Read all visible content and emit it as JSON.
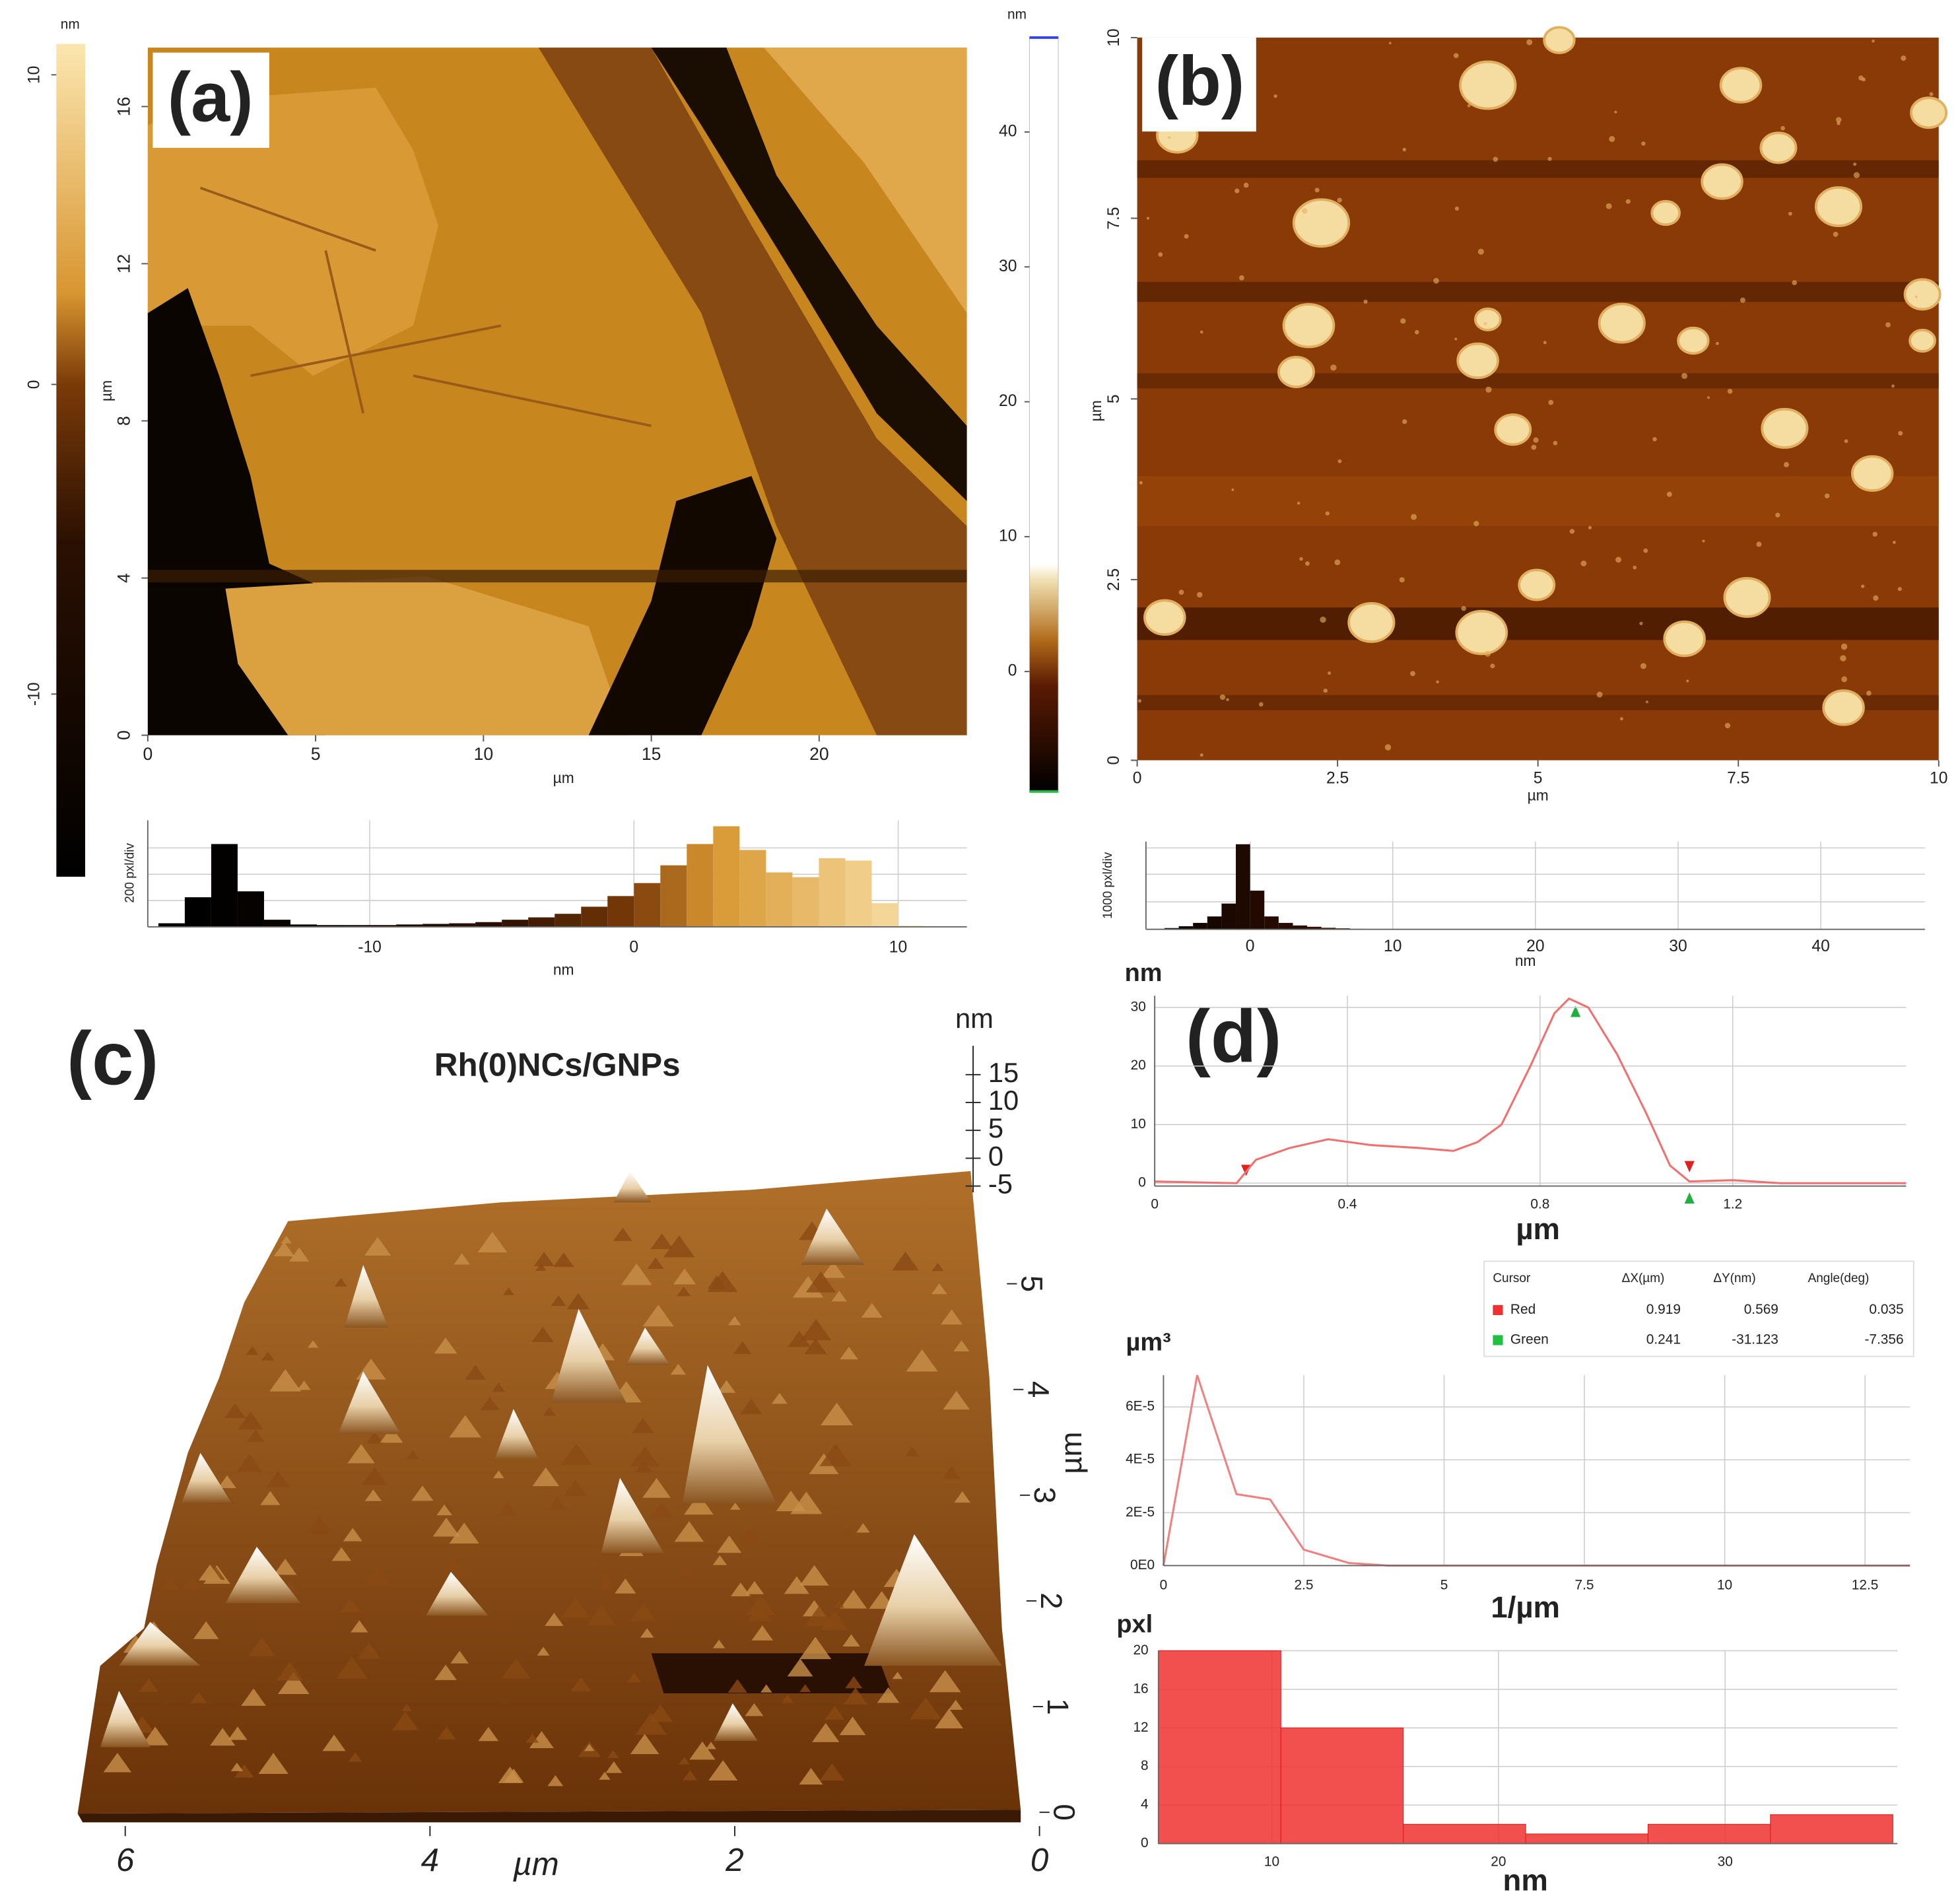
{
  "chart_data": [
    {
      "type": "image",
      "label": "(a)",
      "xlabel": "µm",
      "ylabel": "µm",
      "xlim": [
        0,
        24.4
      ],
      "ylim": [
        0,
        17.5
      ],
      "xticks": [
        0,
        5,
        10,
        15,
        20
      ],
      "yticks": [
        0,
        4,
        8,
        12,
        16
      ],
      "colorbar": {
        "label": "nm",
        "lim": [
          -15.9,
          11
        ],
        "ticks": [
          -10,
          0,
          10
        ]
      }
    },
    {
      "type": "histogram",
      "ylabel": "200 pxl/div",
      "xlabel": "nm",
      "bins": [
        -18,
        -17,
        -16,
        -15,
        -14,
        -13,
        -12,
        -11,
        -10,
        -9,
        -8,
        -7,
        -6,
        -5,
        -4,
        -3,
        -2,
        -1,
        0,
        1,
        2,
        3,
        4,
        5,
        6,
        7,
        8,
        9,
        10,
        11
      ],
      "values": [
        30,
        250,
        700,
        300,
        60,
        20,
        15,
        15,
        15,
        20,
        25,
        30,
        40,
        60,
        80,
        110,
        170,
        260,
        370,
        520,
        700,
        850,
        650,
        460,
        420,
        580,
        560,
        200,
        10
      ],
      "xlim": [
        -18.4,
        12.6
      ],
      "ylim": [
        0,
        900
      ],
      "xticks": [
        -10,
        0,
        10
      ],
      "grid": true
    },
    {
      "type": "image",
      "label": "(b)",
      "xlabel": "µm",
      "ylabel": "µm",
      "xlim": [
        0,
        10
      ],
      "ylim": [
        0,
        10
      ],
      "xticks": [
        0,
        2.5,
        5,
        7.5,
        10
      ],
      "yticks": [
        0,
        2.5,
        5,
        7.5,
        10
      ],
      "colorbar": {
        "label": "nm",
        "lim": [
          -8.9,
          47
        ],
        "ticks": [
          0,
          10,
          20,
          30,
          40
        ]
      }
    },
    {
      "type": "histogram",
      "ylabel": "1000 pxl/div",
      "xlabel": "nm",
      "bins": [
        -7,
        -6,
        -5,
        -4,
        -3,
        -2,
        -1,
        0,
        1,
        2,
        3,
        4,
        5,
        6,
        7,
        8
      ],
      "values": [
        20,
        50,
        120,
        250,
        500,
        1000,
        3300,
        1500,
        500,
        250,
        150,
        100,
        60,
        40,
        20
      ],
      "xlim": [
        -7.3,
        47.3
      ],
      "ylim": [
        0,
        3400
      ],
      "xticks": [
        0,
        10,
        20,
        30,
        40
      ],
      "grid": true
    },
    {
      "type": "surface3d",
      "label": "(c)",
      "title": "Rh(0)NCs/GNPs",
      "zlabel": "nm",
      "zlim": [
        -5,
        15
      ],
      "zticks": [
        15,
        10,
        5,
        0,
        -5
      ],
      "ylabel": "µm",
      "ylim": [
        0,
        5
      ],
      "yticks": [
        0,
        1,
        2,
        3,
        4,
        5
      ],
      "xlabel": "µm",
      "xlim": [
        6,
        0
      ],
      "xticks": [
        6,
        4,
        2,
        0
      ]
    },
    {
      "type": "line",
      "label": "(d)",
      "ylabel": "nm",
      "xlabel": "µm",
      "color": "#f07070",
      "x": [
        0,
        0.17,
        0.21,
        0.28,
        0.36,
        0.45,
        0.55,
        0.62,
        0.67,
        0.72,
        0.78,
        0.83,
        0.86,
        0.9,
        0.96,
        1.02,
        1.07,
        1.11,
        1.2,
        1.3,
        1.56
      ],
      "values": [
        0.3,
        0,
        4,
        6,
        7.5,
        6.5,
        6,
        5.5,
        7,
        10,
        20,
        29,
        31.5,
        30,
        22,
        12,
        3,
        0.3,
        0.5,
        0,
        0
      ],
      "xlim": [
        0,
        1.56
      ],
      "ylim": [
        -0.5,
        32
      ],
      "xticks": [
        0,
        0.4,
        0.8,
        1.2
      ],
      "yticks": [
        0,
        10,
        20,
        30
      ],
      "grid": true,
      "table": {
        "columns": [
          "Cursor",
          "ΔX(µm)",
          "ΔY(nm)",
          "Angle(deg)"
        ],
        "rows": [
          {
            "color": "#f03030",
            "cells": [
              "Red",
              "0.919",
              "0.569",
              "0.035"
            ]
          },
          {
            "color": "#22c040",
            "cells": [
              "Green",
              "0.241",
              "-31.123",
              "-7.356"
            ]
          }
        ]
      }
    },
    {
      "type": "line",
      "ylabel": "µm³",
      "xlabel": "1/µm",
      "color": "#f08080",
      "x": [
        0,
        0.6,
        1.3,
        1.9,
        2.5,
        3.3,
        4,
        13.3
      ],
      "values": [
        0,
        7.2e-05,
        2.7e-05,
        2.5e-05,
        6e-06,
        1e-06,
        0,
        0
      ],
      "xlim": [
        0,
        13.3
      ],
      "ylim": [
        0,
        7.2e-05
      ],
      "xticks": [
        0,
        2.5,
        5,
        7.5,
        10,
        12.5
      ],
      "yticks": [
        {
          "value": 0,
          "label": "0E0"
        },
        {
          "value": 2e-05,
          "label": "2E-5"
        },
        {
          "value": 4e-05,
          "label": "4E-5"
        },
        {
          "value": 6e-05,
          "label": "6E-5"
        }
      ],
      "grid": true
    },
    {
      "type": "histogram",
      "ylabel": "pxl",
      "xlabel": "nm",
      "color": "#f03030",
      "bins": [
        5,
        10.4,
        15.8,
        21.2,
        26.6,
        32,
        37.4
      ],
      "values": [
        20,
        12,
        2,
        1,
        2,
        3
      ],
      "xlim": [
        5,
        37.6
      ],
      "ylim": [
        0,
        20
      ],
      "xticks": [
        10,
        20,
        30
      ],
      "yticks": [
        0,
        4,
        8,
        12,
        16,
        20
      ],
      "grid": true
    }
  ]
}
